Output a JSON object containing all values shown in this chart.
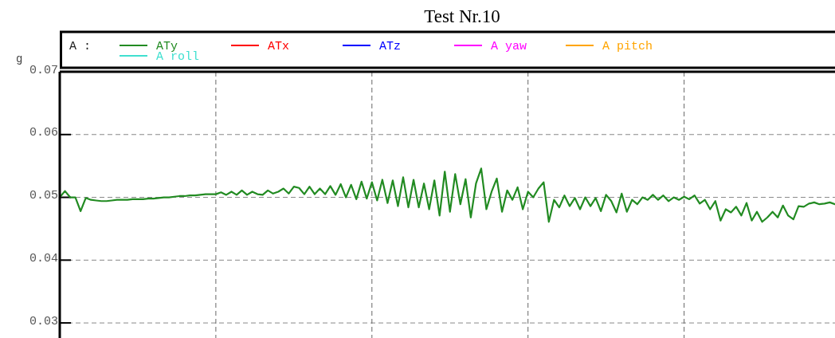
{
  "chart_data": {
    "type": "line",
    "title": "Test Nr.10",
    "ylabel": "g",
    "legend_title": "A :",
    "legend": "top",
    "grid": true,
    "marker": "none",
    "line_style": "solid",
    "categories": [
      null,
      null,
      null,
      null,
      null,
      null,
      null,
      null,
      null,
      null,
      null,
      null,
      null,
      null,
      null,
      null,
      null,
      null,
      null,
      null,
      null,
      null,
      null,
      null,
      null,
      null,
      null,
      null,
      null,
      null,
      null,
      null,
      null,
      null,
      null,
      null,
      null,
      null,
      null,
      null,
      null,
      null,
      null,
      null,
      null,
      null,
      null,
      null,
      null,
      null,
      null,
      null,
      null,
      null,
      null,
      null,
      null,
      null,
      null,
      null,
      null,
      null,
      null,
      null,
      null,
      null,
      null,
      null,
      null,
      null,
      null,
      null,
      null,
      null,
      null,
      null,
      null,
      null,
      null,
      null,
      null,
      null,
      null,
      null,
      null,
      null,
      null,
      null,
      null,
      null,
      null,
      null,
      null,
      null,
      null,
      null,
      null,
      null,
      null,
      null,
      null,
      null,
      null,
      null,
      null,
      null,
      null,
      null,
      null,
      null,
      null,
      null,
      null,
      null,
      null,
      null,
      null,
      null,
      null,
      null,
      null,
      null,
      null,
      null,
      null,
      null,
      null,
      null,
      null,
      null,
      null,
      null,
      null,
      null,
      null,
      null,
      null,
      null,
      null,
      null,
      null,
      null,
      null,
      null,
      null,
      null,
      null,
      null,
      null,
      null
    ],
    "ylim": [
      0.0276,
      0.07
    ],
    "yticks": [
      0.03,
      0.04,
      0.05,
      0.06,
      0.07
    ],
    "series": [
      {
        "name": "ATy",
        "color": "#228b22",
        "values": [
          0.05,
          0.051,
          0.05,
          0.05,
          0.0478,
          0.0499,
          0.0496,
          0.0495,
          0.0494,
          0.0494,
          0.0495,
          0.0496,
          0.0496,
          0.0496,
          0.0497,
          0.0497,
          0.0497,
          0.0498,
          0.0498,
          0.0499,
          0.05,
          0.05,
          0.0501,
          0.0502,
          0.0502,
          0.0503,
          0.0503,
          0.0504,
          0.0505,
          0.0505,
          0.0505,
          0.0508,
          0.0504,
          0.0509,
          0.0504,
          0.0511,
          0.0504,
          0.0509,
          0.0505,
          0.0504,
          0.0511,
          0.0506,
          0.0509,
          0.0514,
          0.0506,
          0.0517,
          0.0515,
          0.0505,
          0.0517,
          0.0505,
          0.0514,
          0.0505,
          0.0518,
          0.0504,
          0.0521,
          0.05,
          0.052,
          0.0497,
          0.0525,
          0.0498,
          0.0524,
          0.0495,
          0.0528,
          0.0491,
          0.0527,
          0.0486,
          0.0532,
          0.0484,
          0.0528,
          0.0484,
          0.0522,
          0.0481,
          0.0527,
          0.0471,
          0.0541,
          0.0477,
          0.0537,
          0.0489,
          0.0529,
          0.0468,
          0.0522,
          0.0546,
          0.0481,
          0.0509,
          0.053,
          0.0477,
          0.0511,
          0.0496,
          0.0516,
          0.0481,
          0.0509,
          0.05,
          0.0514,
          0.0524,
          0.0461,
          0.0496,
          0.0484,
          0.0503,
          0.0486,
          0.0499,
          0.0481,
          0.05,
          0.0486,
          0.0499,
          0.0478,
          0.0504,
          0.0494,
          0.0476,
          0.0506,
          0.0477,
          0.0496,
          0.0489,
          0.05,
          0.0496,
          0.0504,
          0.0496,
          0.0503,
          0.0494,
          0.05,
          0.0496,
          0.0501,
          0.0497,
          0.0503,
          0.049,
          0.0496,
          0.0481,
          0.0494,
          0.0463,
          0.0481,
          0.0476,
          0.0485,
          0.0471,
          0.0491,
          0.0463,
          0.0477,
          0.0461,
          0.0468,
          0.0477,
          0.0468,
          0.0487,
          0.0471,
          0.0465,
          0.0486,
          0.0485,
          0.049,
          0.0492,
          0.0489,
          0.049,
          0.0492,
          0.0489
        ]
      },
      {
        "name": "ATx",
        "color": "#ff0000",
        "values": [
          null,
          null,
          null,
          null,
          null,
          null,
          null,
          null,
          null,
          null,
          null,
          null,
          null,
          null,
          null,
          null,
          null,
          null,
          null,
          null,
          null,
          null,
          null,
          null,
          null,
          null,
          null,
          null,
          null,
          null,
          null,
          null,
          null,
          null,
          null,
          null,
          null,
          null,
          null,
          null,
          null,
          null,
          null,
          null,
          null,
          null,
          null,
          null,
          null,
          null,
          null,
          null,
          null,
          null,
          null,
          null,
          null,
          null,
          null,
          null,
          null,
          null,
          null,
          null,
          null,
          null,
          null,
          null,
          null,
          null,
          null,
          null,
          null,
          null,
          null,
          null,
          null,
          null,
          null,
          null,
          null,
          null,
          null,
          null,
          null,
          null,
          null,
          null,
          null,
          null,
          null,
          null,
          null,
          null,
          null,
          null,
          null,
          null,
          null,
          null,
          null,
          null,
          null,
          null,
          null,
          null,
          null,
          null,
          null,
          null,
          null,
          null,
          null,
          null,
          null,
          null,
          null,
          null,
          null,
          null,
          null,
          null,
          null,
          null,
          null,
          null,
          null,
          null,
          null,
          null,
          null,
          null,
          null,
          null,
          null,
          null,
          null,
          null,
          null,
          null,
          null,
          null,
          null,
          null,
          null,
          null,
          null,
          null,
          null,
          null
        ]
      },
      {
        "name": "ATz",
        "color": "#0000ff",
        "values": [
          null,
          null,
          null,
          null,
          null,
          null,
          null,
          null,
          null,
          null,
          null,
          null,
          null,
          null,
          null,
          null,
          null,
          null,
          null,
          null,
          null,
          null,
          null,
          null,
          null,
          null,
          null,
          null,
          null,
          null,
          null,
          null,
          null,
          null,
          null,
          null,
          null,
          null,
          null,
          null,
          null,
          null,
          null,
          null,
          null,
          null,
          null,
          null,
          null,
          null,
          null,
          null,
          null,
          null,
          null,
          null,
          null,
          null,
          null,
          null,
          null,
          null,
          null,
          null,
          null,
          null,
          null,
          null,
          null,
          null,
          null,
          null,
          null,
          null,
          null,
          null,
          null,
          null,
          null,
          null,
          null,
          null,
          null,
          null,
          null,
          null,
          null,
          null,
          null,
          null,
          null,
          null,
          null,
          null,
          null,
          null,
          null,
          null,
          null,
          null,
          null,
          null,
          null,
          null,
          null,
          null,
          null,
          null,
          null,
          null,
          null,
          null,
          null,
          null,
          null,
          null,
          null,
          null,
          null,
          null,
          null,
          null,
          null,
          null,
          null,
          null,
          null,
          null,
          null,
          null,
          null,
          null,
          null,
          null,
          null,
          null,
          null,
          null,
          null,
          null,
          null,
          null,
          null,
          null,
          null,
          null,
          null,
          null,
          null,
          null
        ]
      },
      {
        "name": "A yaw",
        "color": "#ff00ff",
        "values": [
          null,
          null,
          null,
          null,
          null,
          null,
          null,
          null,
          null,
          null,
          null,
          null,
          null,
          null,
          null,
          null,
          null,
          null,
          null,
          null,
          null,
          null,
          null,
          null,
          null,
          null,
          null,
          null,
          null,
          null,
          null,
          null,
          null,
          null,
          null,
          null,
          null,
          null,
          null,
          null,
          null,
          null,
          null,
          null,
          null,
          null,
          null,
          null,
          null,
          null,
          null,
          null,
          null,
          null,
          null,
          null,
          null,
          null,
          null,
          null,
          null,
          null,
          null,
          null,
          null,
          null,
          null,
          null,
          null,
          null,
          null,
          null,
          null,
          null,
          null,
          null,
          null,
          null,
          null,
          null,
          null,
          null,
          null,
          null,
          null,
          null,
          null,
          null,
          null,
          null,
          null,
          null,
          null,
          null,
          null,
          null,
          null,
          null,
          null,
          null,
          null,
          null,
          null,
          null,
          null,
          null,
          null,
          null,
          null,
          null,
          null,
          null,
          null,
          null,
          null,
          null,
          null,
          null,
          null,
          null,
          null,
          null,
          null,
          null,
          null,
          null,
          null,
          null,
          null,
          null,
          null,
          null,
          null,
          null,
          null,
          null,
          null,
          null,
          null,
          null,
          null,
          null,
          null,
          null,
          null,
          null,
          null,
          null,
          null,
          null
        ]
      },
      {
        "name": "A pitch",
        "color": "#ffa500",
        "values": [
          null,
          null,
          null,
          null,
          null,
          null,
          null,
          null,
          null,
          null,
          null,
          null,
          null,
          null,
          null,
          null,
          null,
          null,
          null,
          null,
          null,
          null,
          null,
          null,
          null,
          null,
          null,
          null,
          null,
          null,
          null,
          null,
          null,
          null,
          null,
          null,
          null,
          null,
          null,
          null,
          null,
          null,
          null,
          null,
          null,
          null,
          null,
          null,
          null,
          null,
          null,
          null,
          null,
          null,
          null,
          null,
          null,
          null,
          null,
          null,
          null,
          null,
          null,
          null,
          null,
          null,
          null,
          null,
          null,
          null,
          null,
          null,
          null,
          null,
          null,
          null,
          null,
          null,
          null,
          null,
          null,
          null,
          null,
          null,
          null,
          null,
          null,
          null,
          null,
          null,
          null,
          null,
          null,
          null,
          null,
          null,
          null,
          null,
          null,
          null,
          null,
          null,
          null,
          null,
          null,
          null,
          null,
          null,
          null,
          null,
          null,
          null,
          null,
          null,
          null,
          null,
          null,
          null,
          null,
          null,
          null,
          null,
          null,
          null,
          null,
          null,
          null,
          null,
          null,
          null,
          null,
          null,
          null,
          null,
          null,
          null,
          null,
          null,
          null,
          null,
          null,
          null,
          null,
          null,
          null,
          null,
          null,
          null,
          null,
          null
        ]
      },
      {
        "name": "A roll",
        "color": "#40e0d0",
        "values": [
          null,
          null,
          null,
          null,
          null,
          null,
          null,
          null,
          null,
          null,
          null,
          null,
          null,
          null,
          null,
          null,
          null,
          null,
          null,
          null,
          null,
          null,
          null,
          null,
          null,
          null,
          null,
          null,
          null,
          null,
          null,
          null,
          null,
          null,
          null,
          null,
          null,
          null,
          null,
          null,
          null,
          null,
          null,
          null,
          null,
          null,
          null,
          null,
          null,
          null,
          null,
          null,
          null,
          null,
          null,
          null,
          null,
          null,
          null,
          null,
          null,
          null,
          null,
          null,
          null,
          null,
          null,
          null,
          null,
          null,
          null,
          null,
          null,
          null,
          null,
          null,
          null,
          null,
          null,
          null,
          null,
          null,
          null,
          null,
          null,
          null,
          null,
          null,
          null,
          null,
          null,
          null,
          null,
          null,
          null,
          null,
          null,
          null,
          null,
          null,
          null,
          null,
          null,
          null,
          null,
          null,
          null,
          null,
          null,
          null,
          null,
          null,
          null,
          null,
          null,
          null,
          null,
          null,
          null,
          null,
          null,
          null,
          null,
          null,
          null,
          null,
          null,
          null,
          null,
          null,
          null,
          null,
          null,
          null,
          null,
          null,
          null,
          null,
          null,
          null,
          null,
          null,
          null,
          null,
          null,
          null,
          null,
          null,
          null,
          null
        ]
      }
    ]
  }
}
